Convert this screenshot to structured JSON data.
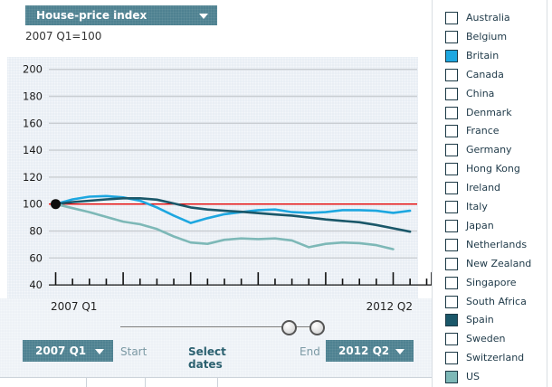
{
  "header": {
    "metric_dropdown": "House-price index",
    "subtitle": "2007 Q1=100"
  },
  "axis_labels": {
    "x_start": "2007 Q1",
    "x_end": "2012 Q2"
  },
  "controls": {
    "start_dropdown_value": "2007 Q1",
    "start_label": "Start",
    "select_dates_label": "Select dates",
    "end_label": "End",
    "end_dropdown_value": "2012 Q2"
  },
  "colors": {
    "teal_button": "#4e8191",
    "baseline_red": "#e60000",
    "gridline": "#c9cdd2",
    "axis": "#111111",
    "britain": "#1da7e0",
    "spain": "#1a5769",
    "us": "#7db8b7",
    "plot_background": "#e9eef4"
  },
  "sidebar": {
    "countries": [
      {
        "name": "Australia",
        "checked": false,
        "color": null
      },
      {
        "name": "Belgium",
        "checked": false,
        "color": null
      },
      {
        "name": "Britain",
        "checked": true,
        "color": "#1da7e0"
      },
      {
        "name": "Canada",
        "checked": false,
        "color": null
      },
      {
        "name": "China",
        "checked": false,
        "color": null
      },
      {
        "name": "Denmark",
        "checked": false,
        "color": null
      },
      {
        "name": "France",
        "checked": false,
        "color": null
      },
      {
        "name": "Germany",
        "checked": false,
        "color": null
      },
      {
        "name": "Hong Kong",
        "checked": false,
        "color": null
      },
      {
        "name": "Ireland",
        "checked": false,
        "color": null
      },
      {
        "name": "Italy",
        "checked": false,
        "color": null
      },
      {
        "name": "Japan",
        "checked": false,
        "color": null
      },
      {
        "name": "Netherlands",
        "checked": false,
        "color": null
      },
      {
        "name": "New Zealand",
        "checked": false,
        "color": null
      },
      {
        "name": "Singapore",
        "checked": false,
        "color": null
      },
      {
        "name": "South Africa",
        "checked": false,
        "color": null
      },
      {
        "name": "Spain",
        "checked": true,
        "color": "#1a5769"
      },
      {
        "name": "Sweden",
        "checked": false,
        "color": null
      },
      {
        "name": "Switzerland",
        "checked": false,
        "color": null
      },
      {
        "name": "US",
        "checked": true,
        "color": "#7db8b7"
      }
    ]
  },
  "chart_data": {
    "type": "line",
    "title": "House-price index",
    "subtitle": "2007 Q1=100",
    "x_range": [
      "2007 Q1",
      "2012 Q2"
    ],
    "categories": [
      "2007 Q1",
      "2007 Q2",
      "2007 Q3",
      "2007 Q4",
      "2008 Q1",
      "2008 Q2",
      "2008 Q3",
      "2008 Q4",
      "2009 Q1",
      "2009 Q2",
      "2009 Q3",
      "2009 Q4",
      "2010 Q1",
      "2010 Q2",
      "2010 Q3",
      "2010 Q4",
      "2011 Q1",
      "2011 Q2",
      "2011 Q3",
      "2011 Q4",
      "2012 Q1",
      "2012 Q2"
    ],
    "ylim": [
      40,
      200
    ],
    "yticks": [
      200,
      180,
      160,
      140,
      120,
      100,
      80,
      60,
      40
    ],
    "baseline": 100,
    "grid": true,
    "start_marker": {
      "category": "2007 Q1",
      "value": 100
    },
    "series": [
      {
        "name": "Britain",
        "color": "#1da7e0",
        "values": [
          100,
          103.5,
          105.5,
          106,
          105,
          102.5,
          97.5,
          91.5,
          86,
          89.5,
          92.5,
          94,
          95.5,
          96,
          94,
          93.5,
          94,
          95.5,
          95.5,
          95,
          93.5,
          95
        ]
      },
      {
        "name": "Spain",
        "color": "#1a5769",
        "values": [
          100,
          101.5,
          102.5,
          103.5,
          104.3,
          104.3,
          103.3,
          100.5,
          97.5,
          96,
          95,
          94.3,
          93.3,
          92.3,
          91.5,
          90,
          88.6,
          87.5,
          86.5,
          84.5,
          82,
          79.5
        ]
      },
      {
        "name": "US",
        "color": "#7db8b7",
        "values": [
          100,
          97,
          94,
          90.5,
          87,
          85,
          81.5,
          76,
          71.5,
          70.5,
          73.5,
          74.5,
          74,
          74.5,
          73,
          68,
          70.5,
          71.5,
          71,
          69.5,
          66.5,
          null
        ]
      }
    ]
  }
}
